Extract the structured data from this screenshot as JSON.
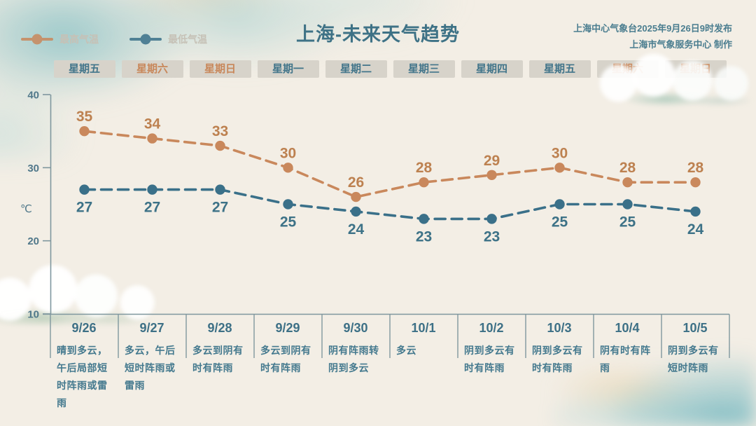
{
  "header": {
    "title": "上海-未来天气趋势",
    "issued_line1": "上海中心气象台2025年9月26日9时发布",
    "issued_line2": "上海市气象服务中心 制作"
  },
  "legend": {
    "items": [
      {
        "id": "high-temp",
        "label": "最高气温",
        "color": "#c9885c"
      },
      {
        "id": "low-temp",
        "label": "最低气温",
        "color": "#3a7089"
      }
    ]
  },
  "weekday_row": [
    {
      "label": "星期五",
      "weekend": false
    },
    {
      "label": "星期六",
      "weekend": true
    },
    {
      "label": "星期日",
      "weekend": true
    },
    {
      "label": "星期一",
      "weekend": false
    },
    {
      "label": "星期二",
      "weekend": false
    },
    {
      "label": "星期三",
      "weekend": false
    },
    {
      "label": "星期四",
      "weekend": false
    },
    {
      "label": "星期五",
      "weekend": false
    },
    {
      "label": "星期六",
      "weekend": true
    },
    {
      "label": "星期日",
      "weekend": true
    }
  ],
  "chart_data": {
    "type": "line",
    "x": [
      "9/26",
      "9/27",
      "9/28",
      "9/29",
      "9/30",
      "10/1",
      "10/2",
      "10/3",
      "10/4",
      "10/5"
    ],
    "series": [
      {
        "name": "最高气温",
        "values": [
          35,
          34,
          33,
          30,
          26,
          28,
          29,
          30,
          28,
          28
        ],
        "color": "#c9885c",
        "label_color": "#bd8150",
        "label_position": "above"
      },
      {
        "name": "最低气温",
        "values": [
          27,
          27,
          27,
          25,
          24,
          23,
          23,
          25,
          25,
          24
        ],
        "color": "#3a7089",
        "label_color": "#3d7287",
        "label_position": "below"
      }
    ],
    "ylabel": "℃",
    "yticks": [
      40,
      30,
      20,
      10
    ],
    "ylim": [
      10,
      40
    ],
    "grid": false,
    "line_style": "dashed",
    "legend_position": "top-left"
  },
  "forecast": {
    "columns": [
      {
        "date": "9/26",
        "weather": "晴到多云，午后局部短时阵雨或雷雨"
      },
      {
        "date": "9/27",
        "weather": "多云，午后短时阵雨或雷雨"
      },
      {
        "date": "9/28",
        "weather": "多云到阴有时有阵雨"
      },
      {
        "date": "9/29",
        "weather": "多云到阴有时有阵雨"
      },
      {
        "date": "9/30",
        "weather": "阴有阵雨转阴到多云"
      },
      {
        "date": "10/1",
        "weather": "多云"
      },
      {
        "date": "10/2",
        "weather": "阴到多云有时有阵雨"
      },
      {
        "date": "10/3",
        "weather": "阴到多云有时有阵雨"
      },
      {
        "date": "10/4",
        "weather": "阴有时有阵雨"
      },
      {
        "date": "10/5",
        "weather": "阴到多云有短时阵雨"
      }
    ]
  },
  "colors": {
    "background": "#f3eee5",
    "title_text": "#3e7286",
    "issuer_text": "#4a7d8f",
    "legend_label": "#c6c1b6",
    "chip_background": "#d7d3ca",
    "weekday_text": "#42758a",
    "weekend_text": "#c8875a",
    "axis": "#7f979e",
    "tick_label": "#50788a",
    "date_text": "#3d7086",
    "forecast_text": "#44798e"
  }
}
